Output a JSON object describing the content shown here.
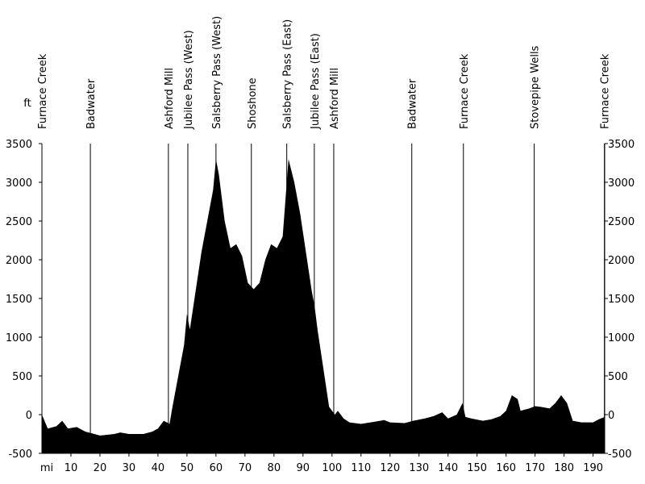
{
  "chart_data": {
    "type": "area",
    "y_label": "ft",
    "x_label": "mi",
    "color": "#000000",
    "x": [
      0,
      2,
      5,
      7,
      9,
      12,
      15,
      17,
      20,
      25,
      27,
      30,
      35,
      38,
      40,
      42,
      44,
      45,
      47,
      49,
      50,
      51,
      53,
      55,
      57,
      59,
      60,
      61,
      63,
      65,
      67,
      69,
      71,
      73,
      75,
      77,
      79,
      81,
      83,
      85,
      87,
      89,
      91,
      93,
      94,
      95,
      97,
      99,
      101,
      102,
      104,
      106,
      110,
      115,
      118,
      120,
      125,
      128,
      132,
      135,
      138,
      140,
      143,
      145,
      146,
      148,
      152,
      155,
      158,
      160,
      162,
      164,
      165,
      168,
      170,
      172,
      175,
      177,
      179,
      181,
      183,
      186,
      190,
      192,
      194
    ],
    "values": [
      0,
      -180,
      -150,
      -80,
      -180,
      -160,
      -220,
      -240,
      -270,
      -250,
      -230,
      -250,
      -250,
      -220,
      -180,
      -80,
      -120,
      100,
      500,
      900,
      1300,
      1100,
      1600,
      2100,
      2500,
      2900,
      3300,
      3100,
      2500,
      2150,
      2200,
      2050,
      1700,
      1620,
      1700,
      2000,
      2200,
      2150,
      2300,
      3300,
      3000,
      2600,
      2100,
      1600,
      1400,
      1100,
      600,
      100,
      0,
      50,
      -50,
      -100,
      -120,
      -90,
      -70,
      -100,
      -110,
      -80,
      -50,
      -20,
      30,
      -50,
      0,
      150,
      -30,
      -50,
      -80,
      -60,
      -20,
      50,
      250,
      200,
      50,
      80,
      110,
      100,
      80,
      150,
      250,
      150,
      -80,
      -100,
      -100,
      -60,
      -30
    ],
    "xlim": [
      0,
      194
    ],
    "ylim": [
      -500,
      3500
    ],
    "xticks": [
      10,
      20,
      30,
      40,
      50,
      60,
      70,
      80,
      90,
      100,
      110,
      120,
      130,
      140,
      150,
      160,
      170,
      180,
      190
    ],
    "yticks": [
      -500,
      0,
      500,
      1000,
      1500,
      2000,
      2500,
      3000,
      3500
    ],
    "landmarks": [
      {
        "name": "Furnace Creek",
        "x": 0
      },
      {
        "name": "Badwater",
        "x": 16.7
      },
      {
        "name": "Ashford Mill",
        "x": 43.6
      },
      {
        "name": "Jubilee Pass (West)",
        "x": 50.3
      },
      {
        "name": "Salsberry Pass (West)",
        "x": 60
      },
      {
        "name": "Shoshone",
        "x": 72.2
      },
      {
        "name": "Salsberry Pass (East)",
        "x": 84.4
      },
      {
        "name": "Jubilee Pass (East)",
        "x": 93.9
      },
      {
        "name": "Ashford Mill",
        "x": 100.6
      },
      {
        "name": "Badwater",
        "x": 127.5
      },
      {
        "name": "Furnace Creek",
        "x": 145.3
      },
      {
        "name": "Stovepipe Wells",
        "x": 169.7
      },
      {
        "name": "Furnace Creek",
        "x": 193.9
      }
    ]
  }
}
